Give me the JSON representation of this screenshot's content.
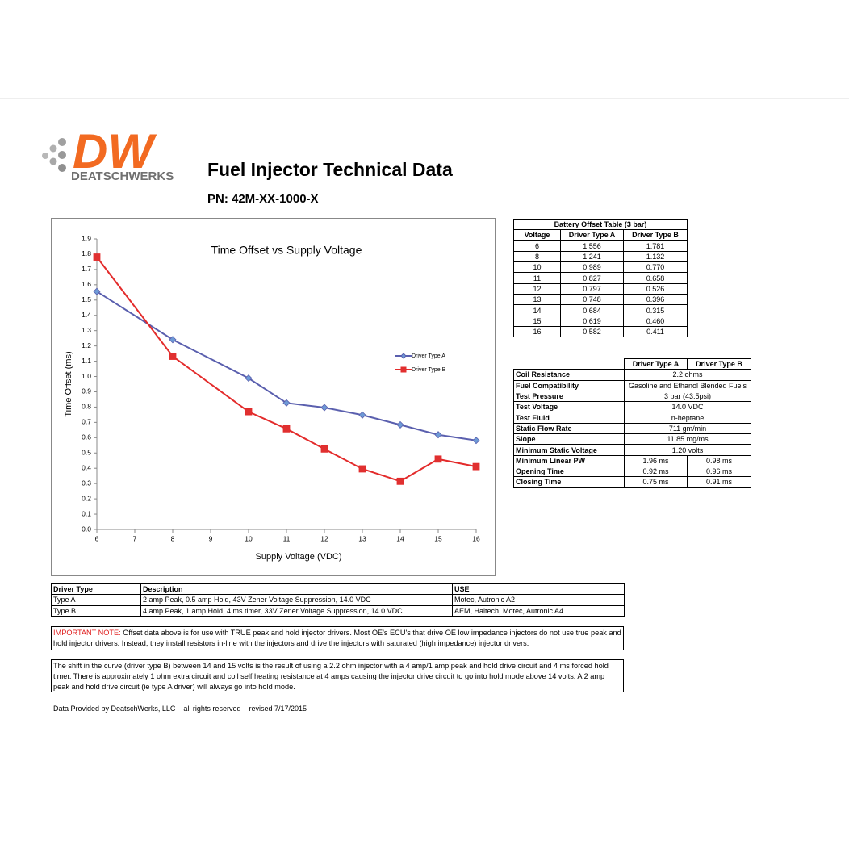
{
  "header": {
    "logo_mark": "DW",
    "logo_text": "DEATSCHWERKS",
    "title": "Fuel Injector Technical Data",
    "part_number": "PN: 42M-XX-1000-X"
  },
  "chart_data": {
    "type": "line",
    "title": "Time Offset vs Supply Voltage",
    "x_label": "Supply Voltage (VDC)",
    "y_label": "Time Offset (ms)",
    "x": [
      6,
      8,
      10,
      11,
      12,
      13,
      14,
      15,
      16
    ],
    "series": [
      {
        "name": "Driver Type A",
        "color": "#5a5fae",
        "marker": "diamond",
        "marker_color": "#6e9ad6",
        "values": [
          1.556,
          1.241,
          0.989,
          0.827,
          0.797,
          0.748,
          0.684,
          0.619,
          0.582
        ]
      },
      {
        "name": "Driver Type B",
        "color": "#e32b2b",
        "marker": "square",
        "marker_color": "#e03030",
        "values": [
          1.781,
          1.132,
          0.77,
          0.658,
          0.526,
          0.396,
          0.315,
          0.46,
          0.411
        ]
      }
    ],
    "xlim": [
      6,
      16
    ],
    "xticks": [
      6,
      7,
      8,
      9,
      10,
      11,
      12,
      13,
      14,
      15,
      16
    ],
    "ylim": [
      0,
      1.9
    ],
    "yticks": [
      {
        "value": 0,
        "label": "0.0"
      },
      0.1,
      0.2,
      0.3,
      0.4,
      0.5,
      0.6,
      0.7,
      0.8,
      0.9,
      {
        "value": 1,
        "label": "1.0"
      },
      1.1,
      1.2,
      1.3,
      1.4,
      1.5,
      1.6,
      1.7,
      1.8,
      1.9
    ],
    "grid": false,
    "legend": "right"
  },
  "battery_table": {
    "title": "Battery Offset Table (3 bar)",
    "columns": [
      "Voltage",
      "Driver Type A",
      "Driver Type B"
    ],
    "rows": [
      [
        "6",
        "1.556",
        "1.781"
      ],
      [
        "8",
        "1.241",
        "1.132"
      ],
      [
        "10",
        "0.989",
        "0.770"
      ],
      [
        "11",
        "0.827",
        "0.658"
      ],
      [
        "12",
        "0.797",
        "0.526"
      ],
      [
        "13",
        "0.748",
        "0.396"
      ],
      [
        "14",
        "0.684",
        "0.315"
      ],
      [
        "15",
        "0.619",
        "0.460"
      ],
      [
        "16",
        "0.582",
        "0.411"
      ]
    ]
  },
  "spec_table": {
    "columns": [
      "Driver Type A",
      "Driver Type B"
    ],
    "rows": [
      [
        "Coil Resistance",
        "2.2 ohms"
      ],
      [
        "Fuel Compatibility",
        "Gasoline and Ethanol Blended Fuels"
      ],
      [
        "Test Pressure",
        "3 bar (43.5psi)"
      ],
      [
        "Test Voltage",
        "14.0 VDC"
      ],
      [
        "Test Fluid",
        "n-heptane"
      ],
      [
        "Static Flow Rate",
        "711 gm/min"
      ],
      [
        "Slope",
        "11.85 mg/ms"
      ],
      [
        "Minimum Static Voltage",
        "1.20 volts"
      ],
      [
        "Minimum Linear PW",
        "1.96 ms",
        "0.98 ms"
      ],
      [
        "Opening Time",
        "0.92 ms",
        "0.96 ms"
      ],
      [
        "Closing Time",
        "0.75 ms",
        "0.91 ms"
      ]
    ]
  },
  "driver_table": {
    "columns": [
      "Driver Type",
      "Description",
      "USE"
    ],
    "rows": [
      [
        "Type A",
        "2 amp Peak, 0.5 amp Hold, 43V Zener Voltage Suppression, 14.0 VDC",
        "Motec, Autronic A2"
      ],
      [
        "Type B",
        "4 amp Peak, 1 amp Hold, 4 ms timer, 33V Zener Voltage Suppression, 14.0 VDC",
        "AEM, Haltech, Motec, Autronic A4"
      ]
    ]
  },
  "notes": [
    {
      "label": "IMPORTANT NOTE:",
      "text": " Offset data above is for use with TRUE peak and hold injector drivers.  Most OE's ECU's that drive OE low impedance injectors do not use true peak and hold injector drivers.  Instead, they install resistors in-line with the injectors and drive the injectors with saturated (high impedance) injector drivers."
    },
    {
      "text": "The shift in the curve (driver type B) between 14 and 15 volts is the result of using a 2.2 ohm injector with a 4 amp/1 amp peak and hold drive circuit and 4 ms forced hold timer. There is approximately 1 ohm extra circuit and coil self heating resistance at 4 amps causing the injector drive circuit to go into hold mode above 14 volts. A 2 amp peak and hold drive circuit (ie type A driver) will always go into hold mode."
    }
  ],
  "footer": [
    "Data Provided by DeatschWerks, LLC",
    "all rights reserved",
    "revised 7/17/2015"
  ]
}
